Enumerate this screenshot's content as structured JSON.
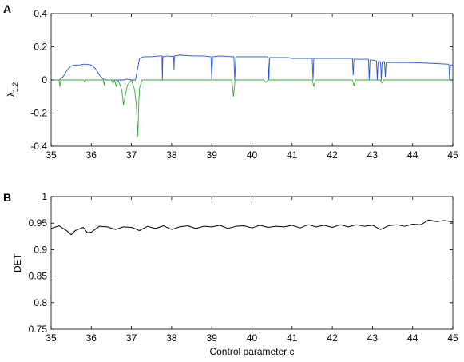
{
  "chart_data": [
    {
      "panel": "A",
      "type": "line",
      "ylabel": "λ",
      "ylabel_subscript": "1,2",
      "xlabel": "",
      "xlim": [
        35,
        45
      ],
      "ylim": [
        -0.4,
        0.4
      ],
      "xticks": [
        "35",
        "36",
        "37",
        "38",
        "39",
        "40",
        "41",
        "42",
        "43",
        "44",
        "45"
      ],
      "yticks": [
        "-0.4",
        "-0.2",
        "0",
        "0.2",
        "0.4"
      ],
      "grid": false,
      "series": [
        {
          "color": "#2255dd",
          "x": [
            35.0,
            35.1,
            35.2,
            35.3,
            35.4,
            35.5,
            35.6,
            35.7,
            35.8,
            35.9,
            36.0,
            36.1,
            36.2,
            36.3,
            36.4,
            36.5,
            36.6,
            36.7,
            36.8,
            36.9,
            37.0,
            37.1,
            37.2,
            37.3,
            37.5,
            37.7,
            37.76,
            37.77,
            37.78,
            37.9,
            38.05,
            38.06,
            38.07,
            38.2,
            38.5,
            38.8,
            38.98,
            39.0,
            39.02,
            39.2,
            39.5,
            39.55,
            39.57,
            39.6,
            39.8,
            40.0,
            40.2,
            40.4,
            40.42,
            40.44,
            40.6,
            40.9,
            41.0,
            41.2,
            41.5,
            41.52,
            41.54,
            41.8,
            42.0,
            42.3,
            42.5,
            42.52,
            42.54,
            42.8,
            42.9,
            42.92,
            42.94,
            43.0,
            43.1,
            43.12,
            43.14,
            43.2,
            43.22,
            43.24,
            43.3,
            43.32,
            43.34,
            43.5,
            44.0,
            44.5,
            44.9,
            44.92,
            44.94,
            45.0
          ],
          "y": [
            0.0,
            0.0,
            0.0,
            0.02,
            0.06,
            0.085,
            0.09,
            0.09,
            0.095,
            0.095,
            0.09,
            0.07,
            0.03,
            0.005,
            0.0,
            0.0,
            0.0,
            0.0,
            0.0,
            0.005,
            0.0,
            0.0,
            0.13,
            0.14,
            0.14,
            0.145,
            0.145,
            0.0,
            0.14,
            0.145,
            0.14,
            0.06,
            0.145,
            0.15,
            0.145,
            0.145,
            0.14,
            0.0,
            0.14,
            0.145,
            0.14,
            0.14,
            0.0,
            0.14,
            0.14,
            0.14,
            0.14,
            0.14,
            0.0,
            0.135,
            0.135,
            0.135,
            0.13,
            0.13,
            0.13,
            0.0,
            0.13,
            0.13,
            0.13,
            0.13,
            0.13,
            0.03,
            0.125,
            0.125,
            0.125,
            0.0,
            0.12,
            0.12,
            0.115,
            0.0,
            0.11,
            0.11,
            0.0,
            0.11,
            0.11,
            0.02,
            0.105,
            0.105,
            0.105,
            0.1,
            0.095,
            0.0,
            0.09,
            0.09
          ]
        },
        {
          "color": "#33aa33",
          "x": [
            35.0,
            35.2,
            35.22,
            35.24,
            35.6,
            35.82,
            35.84,
            35.86,
            36.3,
            36.32,
            36.34,
            36.5,
            36.54,
            36.58,
            36.62,
            36.66,
            36.7,
            36.76,
            36.8,
            36.9,
            37.0,
            37.08,
            37.12,
            37.16,
            37.18,
            37.2,
            37.26,
            37.5,
            38.0,
            38.5,
            39.5,
            39.54,
            39.58,
            40.3,
            40.35,
            40.4,
            41.5,
            41.54,
            41.58,
            42.5,
            42.54,
            42.58,
            43.2,
            43.24,
            43.28,
            45.0
          ],
          "y": [
            0.0,
            0.0,
            -0.04,
            0.0,
            0.0,
            0.0,
            -0.015,
            0.0,
            0.0,
            -0.03,
            0.0,
            0.0,
            -0.02,
            0.0,
            -0.04,
            0.0,
            -0.02,
            -0.06,
            -0.15,
            -0.03,
            0.0,
            -0.06,
            -0.15,
            -0.34,
            -0.15,
            -0.05,
            0.0,
            0.0,
            0.0,
            0.0,
            0.0,
            -0.1,
            0.0,
            0.0,
            -0.015,
            0.0,
            0.0,
            -0.04,
            0.0,
            0.0,
            -0.035,
            0.0,
            0.0,
            -0.02,
            0.0,
            0.0
          ]
        }
      ]
    },
    {
      "panel": "B",
      "type": "line",
      "ylabel": "DET",
      "xlabel": "Control parameter c",
      "xlim": [
        35,
        45
      ],
      "ylim": [
        0.75,
        1
      ],
      "xticks": [
        "35",
        "36",
        "37",
        "38",
        "39",
        "40",
        "41",
        "42",
        "43",
        "44",
        "45"
      ],
      "yticks": [
        "0.75",
        "0.8",
        "0.85",
        "0.9",
        "0.95",
        "1"
      ],
      "grid": false,
      "series": [
        {
          "color": "#000000",
          "x": [
            35.0,
            35.2,
            35.4,
            35.5,
            35.6,
            35.8,
            35.9,
            36.0,
            36.2,
            36.4,
            36.6,
            36.8,
            37.0,
            37.2,
            37.4,
            37.6,
            37.8,
            38.0,
            38.2,
            38.4,
            38.6,
            38.8,
            39.0,
            39.2,
            39.4,
            39.6,
            39.8,
            40.0,
            40.2,
            40.4,
            40.6,
            40.8,
            41.0,
            41.2,
            41.4,
            41.6,
            41.8,
            42.0,
            42.2,
            42.4,
            42.6,
            42.8,
            43.0,
            43.2,
            43.4,
            43.6,
            43.8,
            44.0,
            44.2,
            44.4,
            44.6,
            44.8,
            45.0
          ],
          "y": [
            0.94,
            0.945,
            0.935,
            0.928,
            0.936,
            0.942,
            0.932,
            0.933,
            0.944,
            0.943,
            0.938,
            0.943,
            0.942,
            0.936,
            0.944,
            0.94,
            0.945,
            0.938,
            0.943,
            0.945,
            0.94,
            0.944,
            0.943,
            0.946,
            0.94,
            0.944,
            0.945,
            0.941,
            0.946,
            0.942,
            0.944,
            0.943,
            0.946,
            0.941,
            0.947,
            0.943,
            0.946,
            0.942,
            0.947,
            0.943,
            0.947,
            0.944,
            0.946,
            0.938,
            0.945,
            0.947,
            0.944,
            0.948,
            0.947,
            0.956,
            0.953,
            0.955,
            0.952
          ]
        }
      ]
    }
  ]
}
